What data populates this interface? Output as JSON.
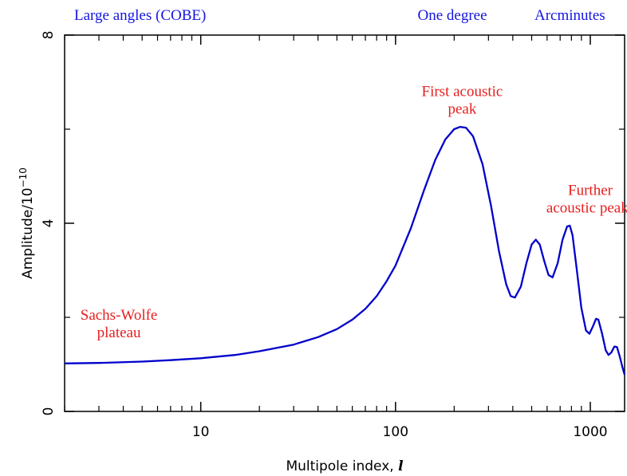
{
  "chart_data": {
    "type": "line",
    "xlabel": "Multipole index,",
    "xlabel_symbol": "l",
    "ylabel_prefix": "Amplitude/10",
    "ylabel_exponent": "−10",
    "x_scale": "log",
    "xlim": [
      2,
      1500
    ],
    "ylim": [
      0,
      8
    ],
    "x_ticks": [
      10,
      100,
      1000
    ],
    "x_tick_labels": [
      "10",
      "100",
      "1000"
    ],
    "y_ticks": [
      0,
      4,
      8
    ],
    "y_tick_labels": [
      "0",
      "4",
      "8"
    ],
    "grid": false,
    "scale_labels": [
      {
        "text": "Large angles (COBE)",
        "l": 2
      },
      {
        "text": "One degree",
        "l": 180
      },
      {
        "text": "Arcminutes",
        "l": 800
      }
    ],
    "annotations": [
      {
        "lines": [
          "First acoustic",
          "peak"
        ],
        "x": 220,
        "y": 6.7
      },
      {
        "lines": [
          "Further",
          "acoustic peaks"
        ],
        "x": 1000,
        "y": 4.6
      },
      {
        "lines": [
          "Sachs-Wolfe",
          "plateau"
        ],
        "x": 3.8,
        "y": 1.95
      }
    ],
    "series": [
      {
        "color": "#0000cc",
        "points": [
          [
            2,
            1.02
          ],
          [
            3,
            1.03
          ],
          [
            5,
            1.06
          ],
          [
            7,
            1.09
          ],
          [
            10,
            1.13
          ],
          [
            15,
            1.2
          ],
          [
            20,
            1.28
          ],
          [
            30,
            1.42
          ],
          [
            40,
            1.58
          ],
          [
            50,
            1.75
          ],
          [
            60,
            1.95
          ],
          [
            70,
            2.18
          ],
          [
            80,
            2.45
          ],
          [
            90,
            2.77
          ],
          [
            100,
            3.1
          ],
          [
            120,
            3.9
          ],
          [
            140,
            4.7
          ],
          [
            160,
            5.35
          ],
          [
            180,
            5.78
          ],
          [
            200,
            6.0
          ],
          [
            215,
            6.05
          ],
          [
            230,
            6.03
          ],
          [
            250,
            5.85
          ],
          [
            280,
            5.25
          ],
          [
            310,
            4.35
          ],
          [
            340,
            3.4
          ],
          [
            370,
            2.7
          ],
          [
            390,
            2.45
          ],
          [
            410,
            2.42
          ],
          [
            440,
            2.65
          ],
          [
            470,
            3.15
          ],
          [
            500,
            3.55
          ],
          [
            525,
            3.65
          ],
          [
            550,
            3.55
          ],
          [
            580,
            3.2
          ],
          [
            610,
            2.9
          ],
          [
            640,
            2.85
          ],
          [
            680,
            3.15
          ],
          [
            720,
            3.65
          ],
          [
            760,
            3.93
          ],
          [
            785,
            3.95
          ],
          [
            810,
            3.75
          ],
          [
            850,
            3.05
          ],
          [
            900,
            2.2
          ],
          [
            950,
            1.72
          ],
          [
            990,
            1.65
          ],
          [
            1030,
            1.8
          ],
          [
            1070,
            1.97
          ],
          [
            1100,
            1.95
          ],
          [
            1150,
            1.65
          ],
          [
            1200,
            1.3
          ],
          [
            1240,
            1.2
          ],
          [
            1280,
            1.25
          ],
          [
            1330,
            1.38
          ],
          [
            1370,
            1.37
          ],
          [
            1420,
            1.15
          ],
          [
            1460,
            0.95
          ],
          [
            1500,
            0.78
          ]
        ]
      }
    ]
  }
}
